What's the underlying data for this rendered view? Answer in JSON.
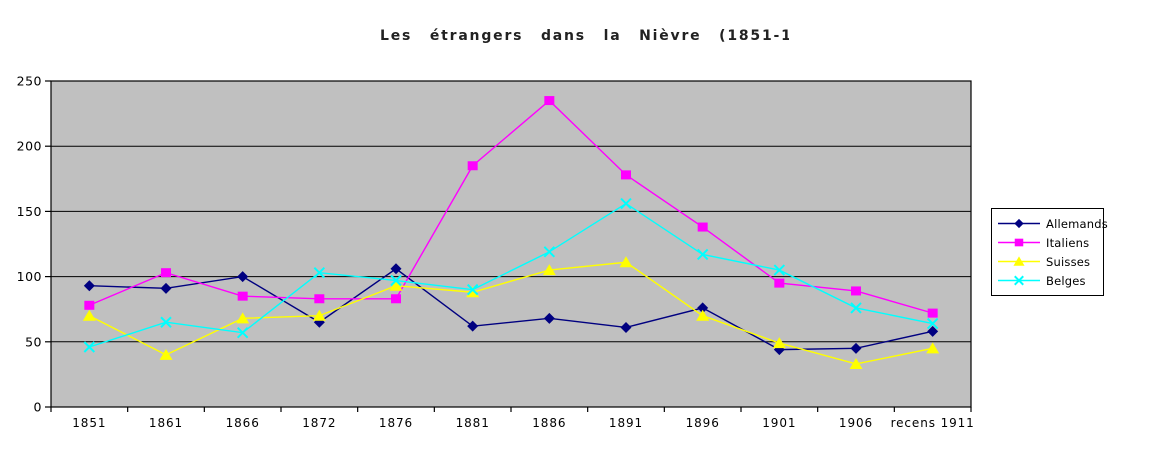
{
  "chart_data": {
    "type": "line",
    "title": "Les étrangers dans la Nièvre (1851-1",
    "categories": [
      "1851",
      "1861",
      "1866",
      "1872",
      "1876",
      "1881",
      "1886",
      "1891",
      "1896",
      "1901",
      "1906",
      "recens 1911"
    ],
    "series": [
      {
        "name": "Allemands",
        "color": "#000080",
        "marker": "diamond",
        "values": [
          93,
          91,
          100,
          65,
          106,
          62,
          68,
          61,
          76,
          44,
          45,
          58
        ]
      },
      {
        "name": "Italiens",
        "color": "#FF00FF",
        "marker": "square",
        "values": [
          78,
          103,
          85,
          83,
          83,
          185,
          235,
          178,
          138,
          95,
          89,
          72
        ]
      },
      {
        "name": "Suisses",
        "color": "#FFFF00",
        "marker": "triangle",
        "values": [
          70,
          40,
          68,
          70,
          93,
          88,
          105,
          111,
          70,
          49,
          33,
          45
        ]
      },
      {
        "name": "Belges",
        "color": "#00FFFF",
        "marker": "x",
        "values": [
          46,
          65,
          57,
          103,
          97,
          90,
          119,
          156,
          117,
          105,
          76,
          64
        ]
      }
    ],
    "xlabel": "",
    "ylabel": "",
    "ylim": [
      0,
      250
    ],
    "ytick_step": 50,
    "grid": "horizontal",
    "plot_background": "#C0C0C0",
    "axis_color": "#000000",
    "legend_position": "right",
    "legend_border_color": "#000000",
    "legend_background": "#FFFFFF"
  }
}
